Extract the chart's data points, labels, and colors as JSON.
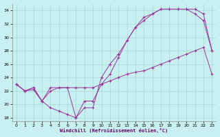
{
  "xlabel": "Windchill (Refroidissement éolien,°C)",
  "bg_color": "#c8f0f0",
  "grid_color": "#a8d8d8",
  "line_color": "#993399",
  "xlim": [
    -0.5,
    23.5
  ],
  "ylim": [
    17.5,
    35.0
  ],
  "yticks": [
    18,
    20,
    22,
    24,
    26,
    28,
    30,
    32,
    34
  ],
  "xticks": [
    0,
    1,
    2,
    3,
    4,
    5,
    6,
    7,
    8,
    9,
    10,
    11,
    12,
    13,
    14,
    15,
    16,
    17,
    18,
    19,
    20,
    21,
    22,
    23
  ],
  "line1_x": [
    0,
    1,
    2,
    3,
    4,
    5,
    6,
    7,
    8,
    9,
    10,
    11,
    12,
    13,
    14,
    15,
    16,
    17,
    18,
    19,
    20,
    21,
    22,
    23
  ],
  "line1_y": [
    23.0,
    22.0,
    22.2,
    20.5,
    22.0,
    22.5,
    22.5,
    22.5,
    22.5,
    22.5,
    23.0,
    23.5,
    24.0,
    24.5,
    24.8,
    25.0,
    25.5,
    26.0,
    26.5,
    27.0,
    27.5,
    28.0,
    28.5,
    24.5
  ],
  "line2_x": [
    0,
    1,
    2,
    3,
    4,
    5,
    6,
    7,
    8,
    9,
    10,
    11,
    12,
    13,
    14,
    15,
    16,
    17,
    18,
    19,
    20,
    21,
    22,
    23
  ],
  "line2_y": [
    23.0,
    22.0,
    22.5,
    20.5,
    22.5,
    22.5,
    22.5,
    18.0,
    20.5,
    20.5,
    23.0,
    24.5,
    27.0,
    29.5,
    31.5,
    32.5,
    33.5,
    34.2,
    34.2,
    34.2,
    34.2,
    33.5,
    32.5,
    28.0
  ],
  "line3_x": [
    0,
    1,
    2,
    3,
    4,
    5,
    6,
    7,
    8,
    9,
    10,
    11,
    12,
    13,
    14,
    15,
    16,
    17,
    18,
    19,
    20,
    21,
    22,
    23
  ],
  "line3_y": [
    23.0,
    22.0,
    22.5,
    20.5,
    19.5,
    19.0,
    18.5,
    18.0,
    19.5,
    19.5,
    24.0,
    26.0,
    27.5,
    29.5,
    31.5,
    33.0,
    33.5,
    34.2,
    34.2,
    34.2,
    34.2,
    34.2,
    33.5,
    28.0
  ]
}
